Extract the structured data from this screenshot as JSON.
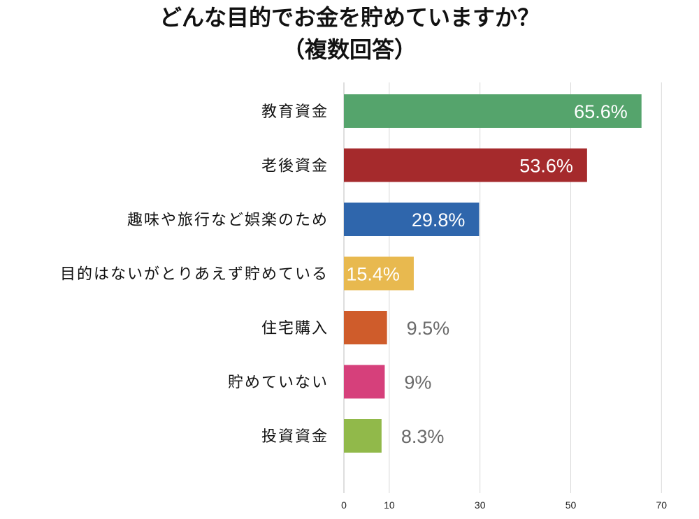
{
  "chart_data": {
    "type": "bar",
    "orientation": "horizontal",
    "title": "どんな目的でお金を貯めていますか？",
    "subtitle": "（複数回答）",
    "categories": [
      "教育資金",
      "老後資金",
      "趣味や旅行など娯楽のため",
      "目的はないがとりあえず貯めている",
      "住宅購入",
      "貯めていない",
      "投資資金"
    ],
    "values": [
      65.6,
      53.6,
      29.8,
      15.4,
      9.5,
      9,
      8.3
    ],
    "value_labels": [
      "65.6%",
      "53.6%",
      "29.8%",
      "15.4%",
      "9.5%",
      "9%",
      "8.3%"
    ],
    "colors": [
      "#55a46c",
      "#a52a2c",
      "#2f66ac",
      "#e8b94f",
      "#cf5c2b",
      "#d6407b",
      "#91b94a"
    ],
    "xlim": [
      0,
      70
    ],
    "xticks": [
      0,
      10,
      30,
      50,
      70
    ],
    "xlabel": "",
    "ylabel": "",
    "grid": true,
    "legend": "none"
  }
}
